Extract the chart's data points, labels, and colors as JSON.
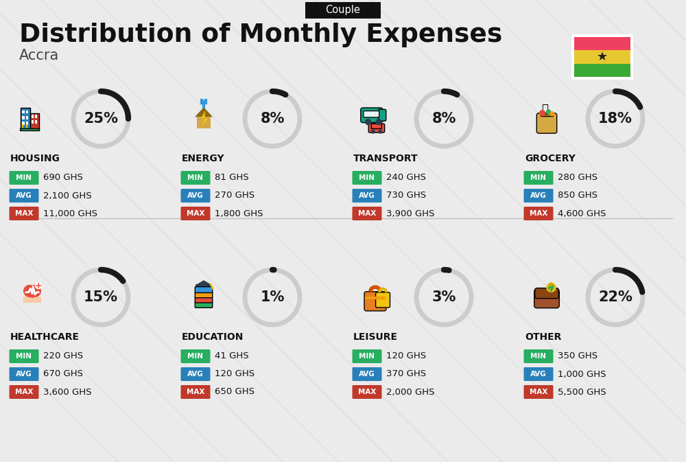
{
  "title": "Distribution of Monthly Expenses",
  "subtitle": "Accra",
  "tag": "Couple",
  "bg_color": "#ebebeb",
  "categories": [
    {
      "name": "HOUSING",
      "percent": 25,
      "min_val": "690 GHS",
      "avg_val": "2,100 GHS",
      "max_val": "11,000 GHS",
      "row": 0,
      "col": 0,
      "icon_type": "housing"
    },
    {
      "name": "ENERGY",
      "percent": 8,
      "min_val": "81 GHS",
      "avg_val": "270 GHS",
      "max_val": "1,800 GHS",
      "row": 0,
      "col": 1,
      "icon_type": "energy"
    },
    {
      "name": "TRANSPORT",
      "percent": 8,
      "min_val": "240 GHS",
      "avg_val": "730 GHS",
      "max_val": "3,900 GHS",
      "row": 0,
      "col": 2,
      "icon_type": "transport"
    },
    {
      "name": "GROCERY",
      "percent": 18,
      "min_val": "280 GHS",
      "avg_val": "850 GHS",
      "max_val": "4,600 GHS",
      "row": 0,
      "col": 3,
      "icon_type": "grocery"
    },
    {
      "name": "HEALTHCARE",
      "percent": 15,
      "min_val": "220 GHS",
      "avg_val": "670 GHS",
      "max_val": "3,600 GHS",
      "row": 1,
      "col": 0,
      "icon_type": "healthcare"
    },
    {
      "name": "EDUCATION",
      "percent": 1,
      "min_val": "41 GHS",
      "avg_val": "120 GHS",
      "max_val": "650 GHS",
      "row": 1,
      "col": 1,
      "icon_type": "education"
    },
    {
      "name": "LEISURE",
      "percent": 3,
      "min_val": "120 GHS",
      "avg_val": "370 GHS",
      "max_val": "2,000 GHS",
      "row": 1,
      "col": 2,
      "icon_type": "leisure"
    },
    {
      "name": "OTHER",
      "percent": 22,
      "min_val": "350 GHS",
      "avg_val": "1,000 GHS",
      "max_val": "5,500 GHS",
      "row": 1,
      "col": 3,
      "icon_type": "other"
    }
  ],
  "min_color": "#27ae60",
  "avg_color": "#2980b9",
  "max_color": "#c0392b",
  "tag_bg": "#111111",
  "tag_fg": "#ffffff",
  "title_color": "#111111",
  "subtitle_color": "#444444",
  "arc_dark": "#1a1a1a",
  "arc_light": "#cccccc",
  "flag_red": "#f04060",
  "flag_gold": "#e8c830",
  "flag_green": "#3aaa35",
  "stripe_color": "#d5d5d5"
}
